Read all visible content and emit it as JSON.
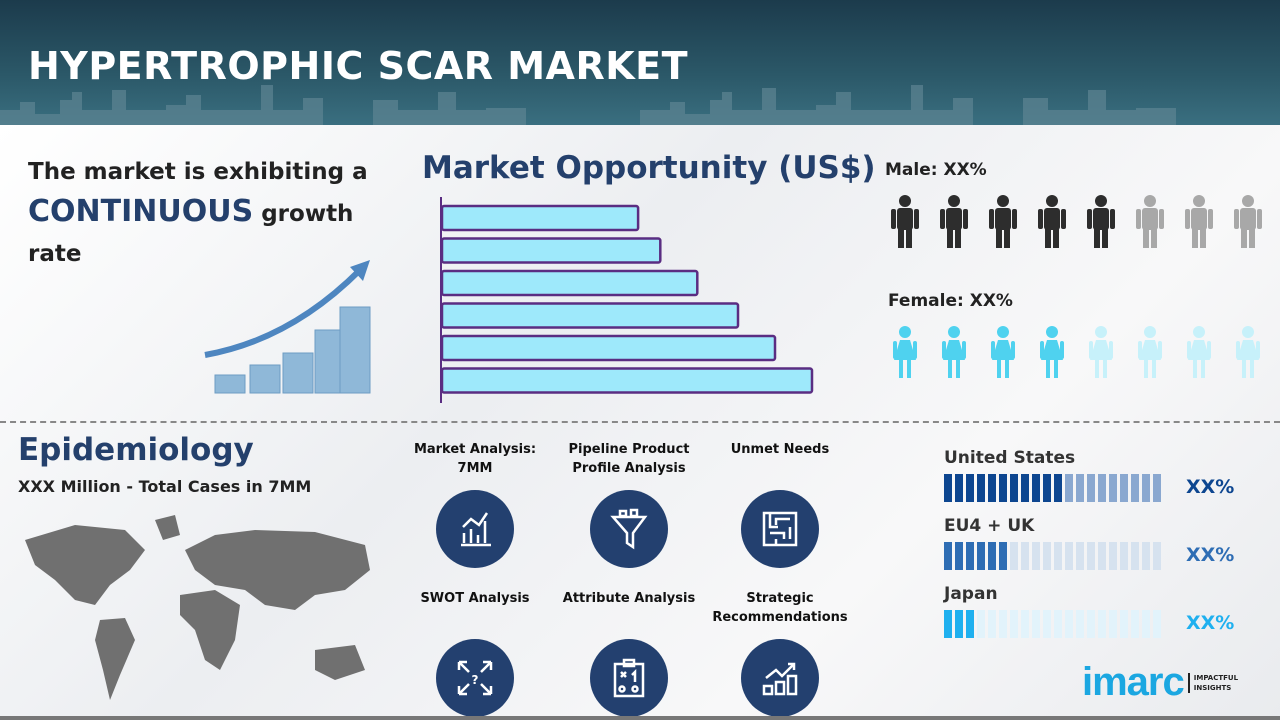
{
  "header": {
    "title": "HYPERTROPHIC SCAR MARKET"
  },
  "growth": {
    "line1": "The market is exhibiting a",
    "emphasis": "CONTINUOUS",
    "line2": " growth",
    "line3": "rate"
  },
  "market_opportunity": {
    "title": "Market Opportunity (US$)",
    "bar_relative_lengths": [
      0.53,
      0.59,
      0.69,
      0.8,
      0.9,
      1.0
    ],
    "bar_color": "#9ee9fb",
    "bar_border": "#5a2d82"
  },
  "gender": {
    "male_label": "Male: XX%",
    "female_label": "Female: XX%",
    "male_filled": 5,
    "female_filled": 4,
    "total": 8,
    "colors": {
      "male": "#2d2d2d",
      "male_empty": "#a8a8a8",
      "female": "#4fd2ef",
      "female_empty": "#c7f1fa"
    }
  },
  "epidemiology": {
    "title": "Epidemiology",
    "subtitle": "XXX Million  - Total Cases in 7MM"
  },
  "features": [
    {
      "label": "Market Analysis: 7MM",
      "icon": "bar-line-chart-icon"
    },
    {
      "label": "Pipeline Product Profile Analysis",
      "icon": "funnel-icon"
    },
    {
      "label": "Unmet Needs",
      "icon": "maze-icon"
    },
    {
      "label": "SWOT Analysis",
      "icon": "swot-arrows-icon"
    },
    {
      "label": "Attribute Analysis",
      "icon": "clipboard-strategy-icon"
    },
    {
      "label": "Strategic Recommendations",
      "icon": "growth-chart-icon"
    }
  ],
  "regions": [
    {
      "name": "United States",
      "value": "XX%",
      "filled": 11,
      "total": 20,
      "color": "#0d4690",
      "empty": "#8aa8d0"
    },
    {
      "name": "EU4 + UK",
      "value": "XX%",
      "filled": 6,
      "total": 20,
      "color": "#2e6db4",
      "empty": "#d6e2ef"
    },
    {
      "name": "Japan",
      "value": "XX%",
      "filled": 3,
      "total": 20,
      "color": "#1fb0ef",
      "empty": "#e2f3fb"
    }
  ],
  "logo": {
    "text": "imarc",
    "tagline1": "IMPACTFUL",
    "tagline2": "INSIGHTS"
  }
}
